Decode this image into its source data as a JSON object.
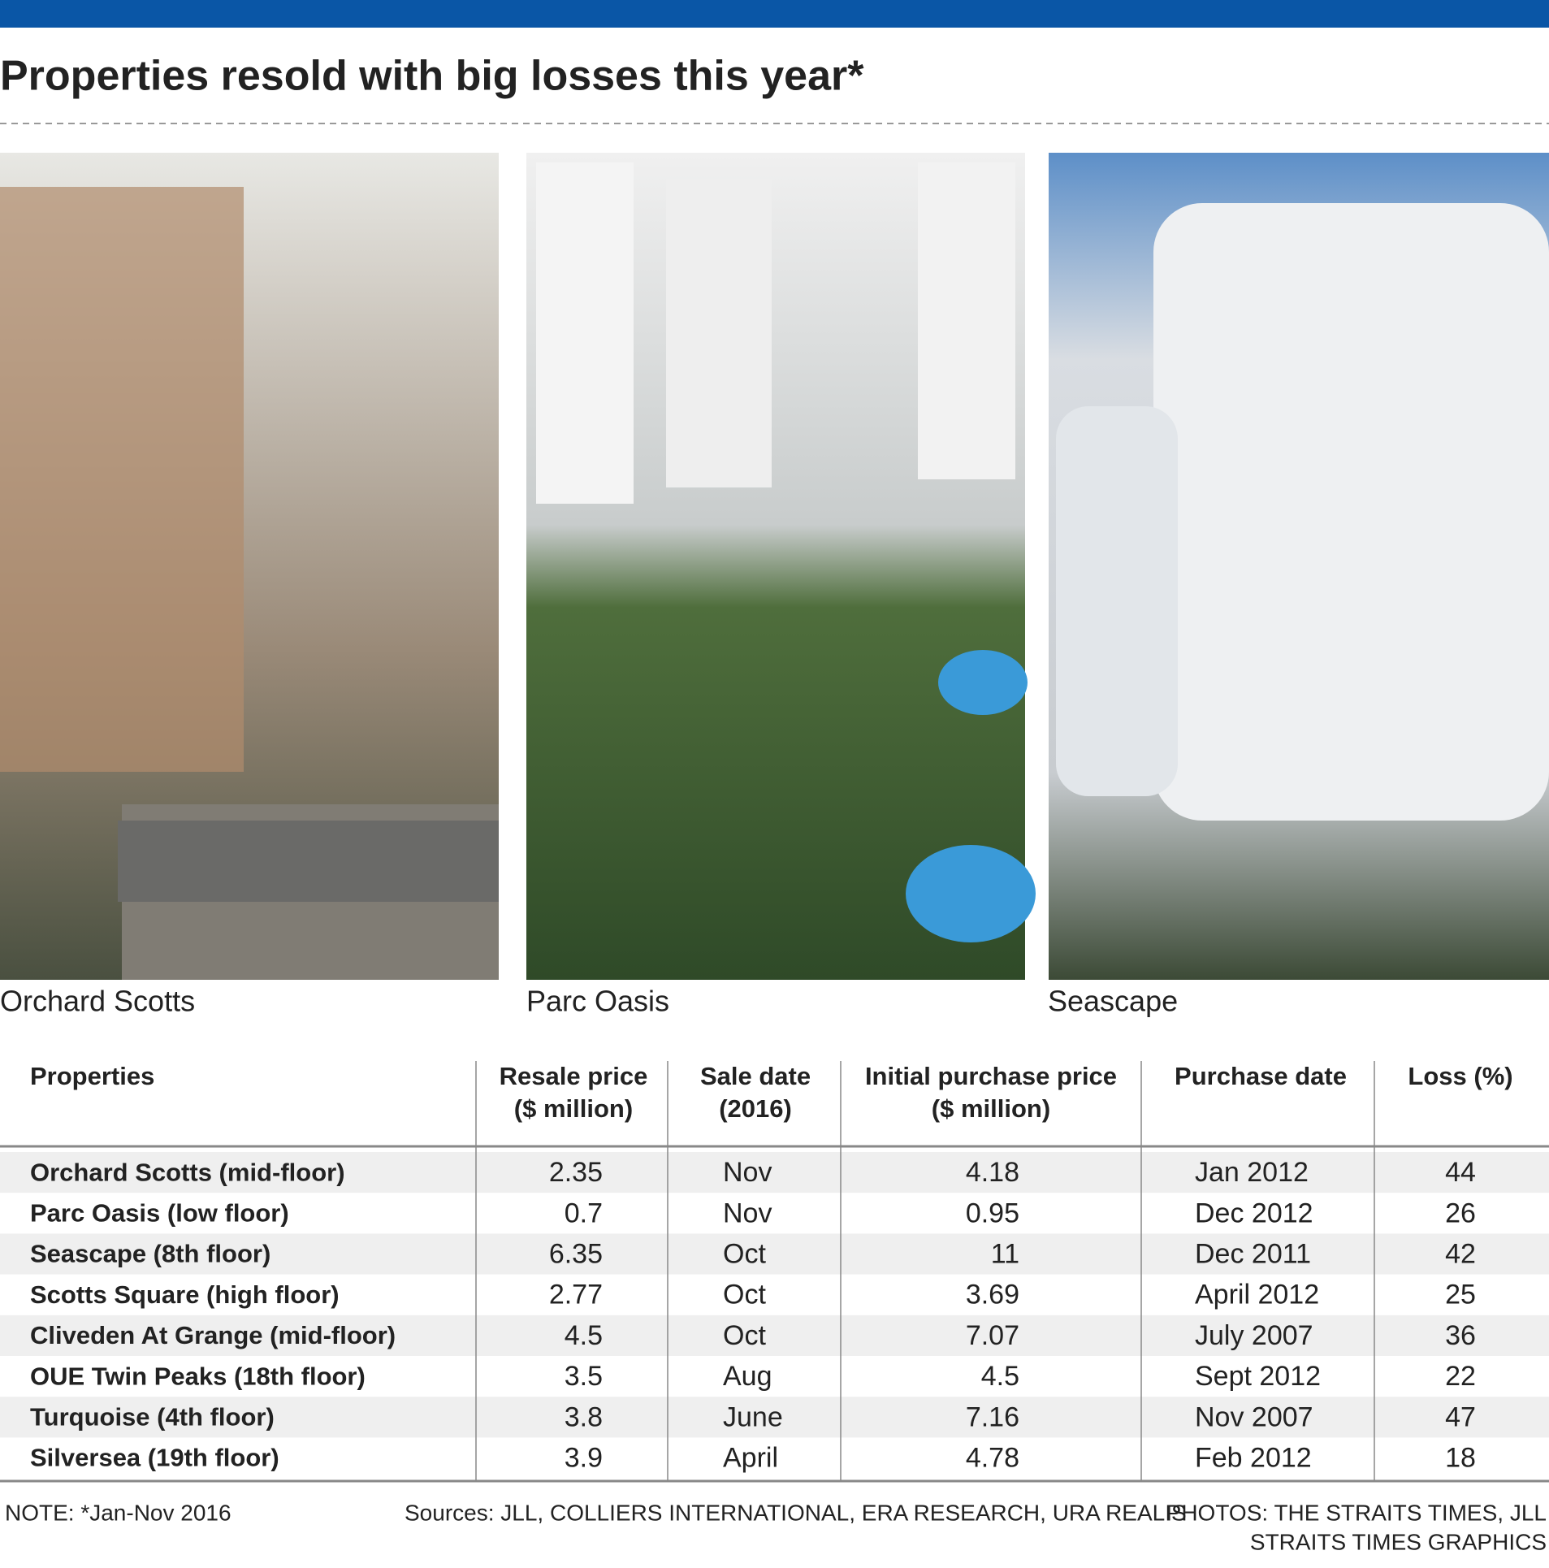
{
  "header": {
    "title": "Properties resold with big losses this year*"
  },
  "photos": [
    {
      "caption": "Orchard Scotts"
    },
    {
      "caption": "Parc Oasis"
    },
    {
      "caption": "Seascape"
    }
  ],
  "table": {
    "columns": [
      [
        "Properties"
      ],
      [
        "Resale price",
        "($ million)"
      ],
      [
        "Sale date",
        "(2016)"
      ],
      [
        "Initial purchase price",
        "($ million)"
      ],
      [
        "Purchase date"
      ],
      [
        "Loss (%)"
      ]
    ],
    "rows": [
      [
        "Orchard Scotts (mid-floor)",
        "2.35",
        "Nov",
        "4.18",
        "Jan 2012",
        "44"
      ],
      [
        "Parc Oasis (low floor)",
        "0.7",
        "Nov",
        "0.95",
        "Dec 2012",
        "26"
      ],
      [
        "Seascape (8th floor)",
        "6.35",
        "Oct",
        "11",
        "Dec 2011",
        "42"
      ],
      [
        "Scotts Square (high floor)",
        "2.77",
        "Oct",
        "3.69",
        "April 2012",
        "25"
      ],
      [
        "Cliveden At Grange (mid-floor)",
        "4.5",
        "Oct",
        "7.07",
        "July 2007",
        "36"
      ],
      [
        "OUE Twin Peaks (18th floor)",
        "3.5",
        "Aug",
        "4.5",
        "Sept 2012",
        "22"
      ],
      [
        "Turquoise (4th floor)",
        "3.8",
        "June",
        "7.16",
        "Nov 2007",
        "47"
      ],
      [
        "Silversea (19th floor)",
        "3.9",
        "April",
        "4.78",
        "Feb 2012",
        "18"
      ]
    ]
  },
  "footer": {
    "note": "NOTE: *Jan-Nov 2016",
    "sources": "Sources: JLL, COLLIERS INTERNATIONAL, ERA RESEARCH, URA REALIS",
    "photos": "PHOTOS: THE STRAITS TIMES, JLL",
    "credit": "STRAITS TIMES GRAPHICS"
  }
}
